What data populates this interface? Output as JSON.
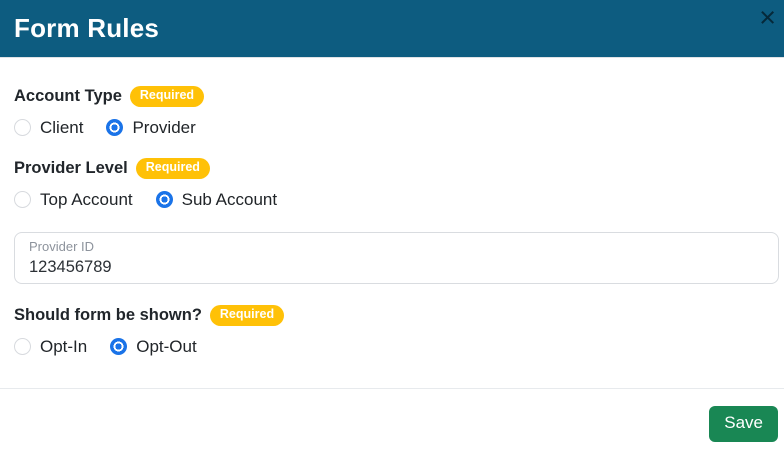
{
  "header": {
    "title": "Form Rules",
    "close_icon": "×"
  },
  "account_type": {
    "label": "Account Type",
    "badge": "Required",
    "options": [
      {
        "label": "Client",
        "selected": false
      },
      {
        "label": "Provider",
        "selected": true
      }
    ]
  },
  "provider_level": {
    "label": "Provider Level",
    "badge": "Required",
    "options": [
      {
        "label": "Top Account",
        "selected": false
      },
      {
        "label": "Sub Account",
        "selected": true
      }
    ]
  },
  "provider_id": {
    "label": "Provider ID",
    "value": "123456789"
  },
  "form_shown": {
    "label": "Should form be shown?",
    "badge": "Required",
    "options": [
      {
        "label": "Opt-In",
        "selected": false
      },
      {
        "label": "Opt-Out",
        "selected": true
      }
    ]
  },
  "footer": {
    "save_label": "Save"
  },
  "colors": {
    "header_bg": "#0d5c80",
    "badge_bg": "#ffc107",
    "radio_selected": "#1a73e8",
    "save_bg": "#198754"
  }
}
